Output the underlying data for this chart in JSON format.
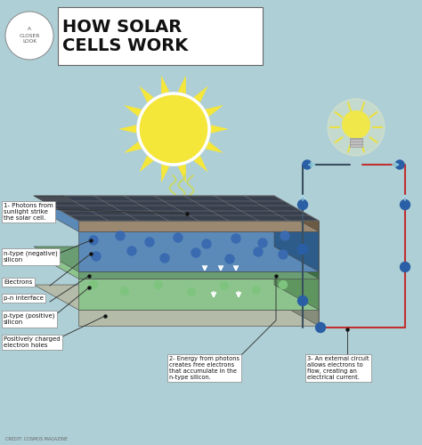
{
  "bg_color": "#aecfd6",
  "title": "HOW SOLAR\nCELLS WORK",
  "closer_look_text": "A\nCLOSER\nLOOK",
  "sun_color": "#f5e63a",
  "sun_outline": "#ffffff",
  "bulb_color": "#f0e84a",
  "electron_color": "#2a5fa5",
  "circuit_line_dark": "#3a5060",
  "circuit_line_red": "#c03030",
  "credit": "CREDIT: COSMOS MAGAZINE",
  "label1": "1- Photons from\nsunlight strike\nthe solar cell.",
  "label_ntype": "n-type (negative)\nsilicon",
  "label_electrons": "Electrons",
  "label_pn": "p-n interface",
  "label_ptype": "p-type (positive)\nsilicon",
  "label_holes": "Positively charged\nelectron holes",
  "label2": "2- Energy from photons\ncreates free electrons\nthat accumulate in the\nn-type silicon.",
  "label3": "3- An external circuit\nallows electrons to\nflow, creating an\nelectrical current."
}
